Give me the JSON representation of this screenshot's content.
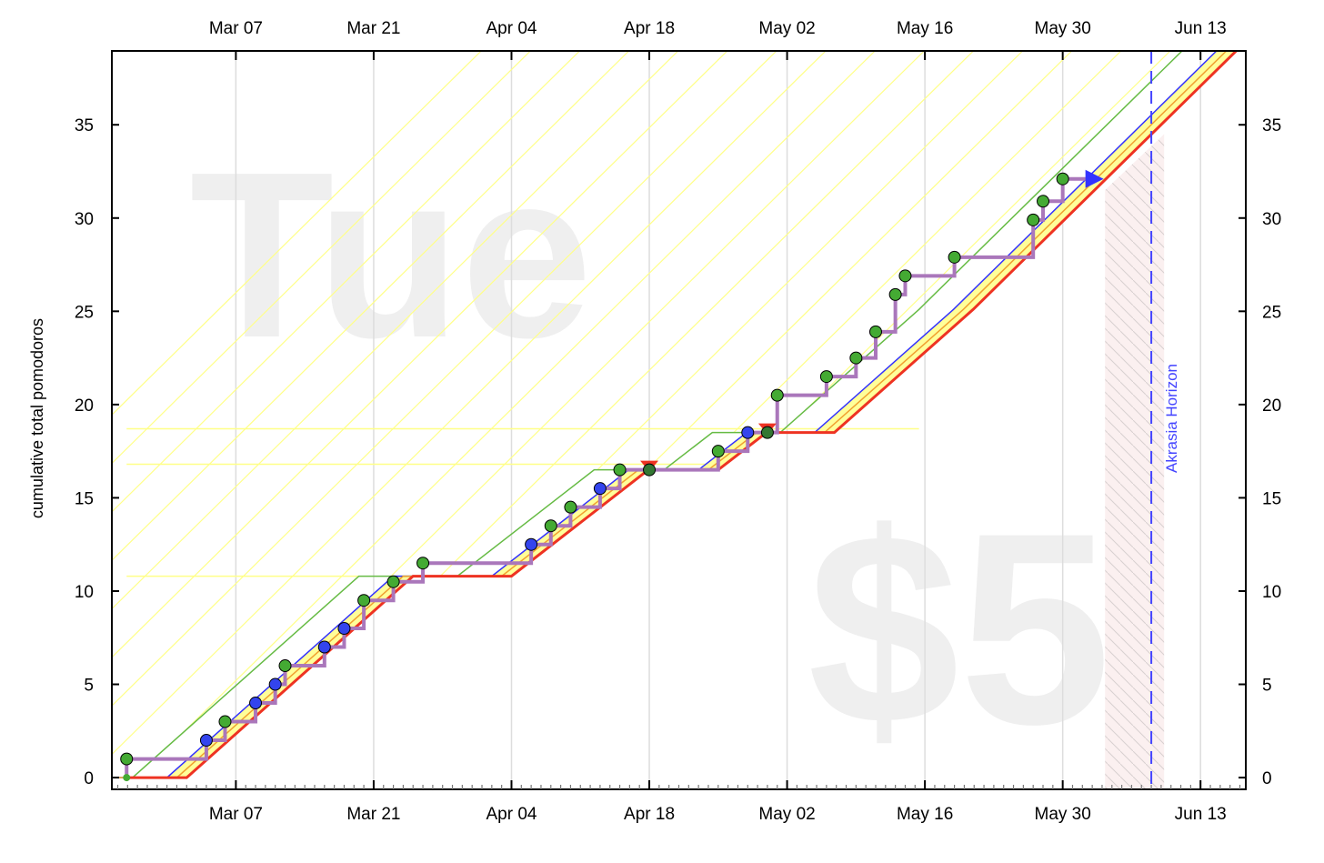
{
  "chart_data": {
    "type": "line",
    "title": "",
    "ylabel": "cumulative total pomodoros",
    "xlabel": "",
    "x_unit": "days since Mar 07",
    "xlim": [
      -12.6,
      102.6
    ],
    "ylim": [
      -0.63,
      38.96
    ],
    "x_ticks": [
      {
        "day": 0,
        "label": "Mar 07"
      },
      {
        "day": 14,
        "label": "Mar 21"
      },
      {
        "day": 28,
        "label": "Apr 04"
      },
      {
        "day": 42,
        "label": "Apr 18"
      },
      {
        "day": 56,
        "label": "May 02"
      },
      {
        "day": 70,
        "label": "May 16"
      },
      {
        "day": 84,
        "label": "May 30"
      },
      {
        "day": 98,
        "label": "Jun 13"
      }
    ],
    "y_ticks": [
      0,
      5,
      10,
      15,
      20,
      25,
      30,
      35
    ],
    "watermark_day": "Tue",
    "watermark_pledge": "$5",
    "akrasia_horizon": {
      "day": 93,
      "label": "Akrasia Horizon"
    },
    "road": [
      [
        -11.1,
        0
      ],
      [
        -5,
        0
      ],
      [
        18,
        10.8
      ],
      [
        28,
        10.8
      ],
      [
        41.9,
        16.5
      ],
      [
        49,
        16.5
      ],
      [
        53.9,
        18.5
      ],
      [
        60.8,
        18.5
      ],
      [
        74.9,
        25.1
      ],
      [
        101.7,
        39
      ]
    ],
    "lane_offsets_days": {
      "orange": -1,
      "blue": -2,
      "green": -5.5
    },
    "guide_levels": [
      10.8,
      16.8,
      18.7
    ],
    "points": [
      [
        -11.1,
        1,
        "green"
      ],
      [
        -3,
        2,
        "blue"
      ],
      [
        -1.1,
        3,
        "green"
      ],
      [
        2,
        4,
        "blue"
      ],
      [
        4,
        5,
        "blue"
      ],
      [
        5,
        6,
        "green"
      ],
      [
        9,
        7,
        "blue"
      ],
      [
        11,
        8,
        "blue"
      ],
      [
        13,
        9.5,
        "green"
      ],
      [
        16,
        10.5,
        "green"
      ],
      [
        19,
        11.5,
        "green"
      ],
      [
        30,
        12.5,
        "blue"
      ],
      [
        32,
        13.5,
        "green"
      ],
      [
        34,
        14.5,
        "green"
      ],
      [
        37,
        15.5,
        "blue"
      ],
      [
        39,
        16.5,
        "green"
      ],
      [
        42,
        16.5,
        "darkgreen"
      ],
      [
        49,
        17.5,
        "green"
      ],
      [
        52,
        18.5,
        "blue"
      ],
      [
        54,
        18.5,
        "darkgreen"
      ],
      [
        55,
        20.5,
        "green"
      ],
      [
        60,
        21.5,
        "green"
      ],
      [
        63,
        22.5,
        "green"
      ],
      [
        65,
        23.9,
        "green"
      ],
      [
        67,
        25.9,
        "green"
      ],
      [
        68,
        26.9,
        "green"
      ],
      [
        73,
        27.9,
        "green"
      ],
      [
        81,
        29.9,
        "green"
      ],
      [
        82,
        30.9,
        "green"
      ],
      [
        84,
        32.1,
        "green"
      ]
    ],
    "derail_markers": [
      [
        42,
        16.5
      ],
      [
        54,
        18.5
      ]
    ],
    "colors": {
      "red": "#ee3322",
      "orange": "#f0a030",
      "yellow": "#ffff99",
      "blue": "#3333ff",
      "green": "#66bb44",
      "purple": "#aa77bb",
      "dot_green": "#44aa33",
      "dot_darkgreen": "#337733",
      "dot_blue": "#3344ee",
      "horizon": "#4444ff"
    }
  }
}
